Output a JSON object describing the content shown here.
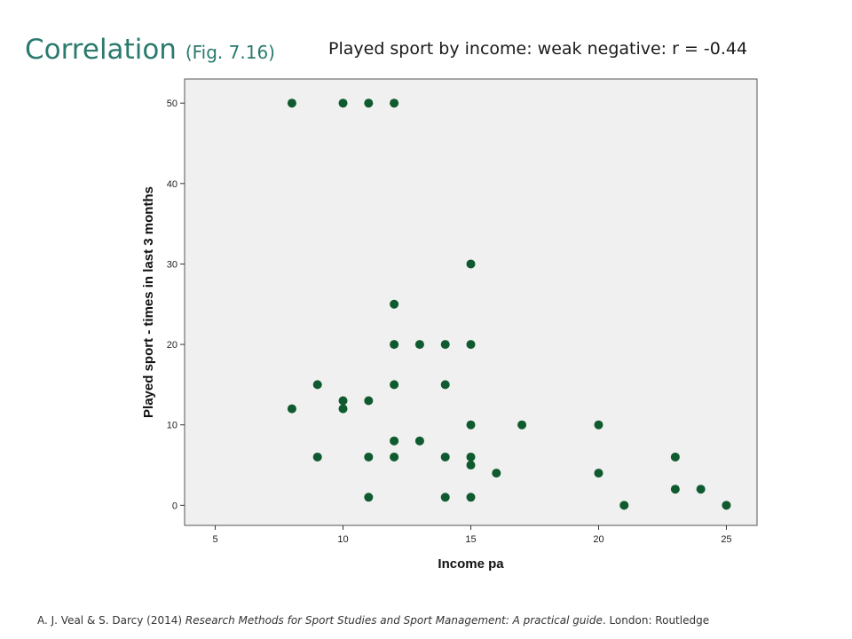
{
  "slide": {
    "title": "Correlation",
    "figure_ref": "(Fig. 7.16)",
    "heading": "Played sport by income: weak negative: r = -0.44",
    "citation": {
      "authors": "A. J. Veal & S. Darcy (2014) ",
      "book": "Research Methods for Sport Studies and Sport Management: A practical guide",
      "publisher": ". London: Routledge"
    }
  },
  "colors": {
    "title": "#2a7a6e",
    "point": "#0f5a2e",
    "plot_background": "#f0f0f0",
    "plot_border": "#555555"
  },
  "chart_data": {
    "type": "scatter",
    "title": "",
    "xlabel": "Income pa",
    "ylabel": "Played sport - times in last 3 months",
    "xlim": [
      3.8,
      26.2
    ],
    "ylim": [
      -2.5,
      53
    ],
    "xticks": [
      5,
      10,
      15,
      20,
      25
    ],
    "yticks": [
      0,
      10,
      20,
      30,
      40,
      50
    ],
    "grid": false,
    "points": [
      {
        "x": 8,
        "y": 50
      },
      {
        "x": 10,
        "y": 50
      },
      {
        "x": 11,
        "y": 50
      },
      {
        "x": 12,
        "y": 50
      },
      {
        "x": 15,
        "y": 30
      },
      {
        "x": 12,
        "y": 25
      },
      {
        "x": 12,
        "y": 20
      },
      {
        "x": 13,
        "y": 20
      },
      {
        "x": 14,
        "y": 20
      },
      {
        "x": 15,
        "y": 20
      },
      {
        "x": 9,
        "y": 15
      },
      {
        "x": 12,
        "y": 15
      },
      {
        "x": 14,
        "y": 15
      },
      {
        "x": 10,
        "y": 13
      },
      {
        "x": 11,
        "y": 13
      },
      {
        "x": 8,
        "y": 12
      },
      {
        "x": 10,
        "y": 12
      },
      {
        "x": 15,
        "y": 10
      },
      {
        "x": 17,
        "y": 10
      },
      {
        "x": 20,
        "y": 10
      },
      {
        "x": 12,
        "y": 8
      },
      {
        "x": 13,
        "y": 8
      },
      {
        "x": 9,
        "y": 6
      },
      {
        "x": 11,
        "y": 6
      },
      {
        "x": 12,
        "y": 6
      },
      {
        "x": 14,
        "y": 6
      },
      {
        "x": 15,
        "y": 6
      },
      {
        "x": 23,
        "y": 6
      },
      {
        "x": 15,
        "y": 5
      },
      {
        "x": 16,
        "y": 4
      },
      {
        "x": 20,
        "y": 4
      },
      {
        "x": 23,
        "y": 2
      },
      {
        "x": 24,
        "y": 2
      },
      {
        "x": 11,
        "y": 1
      },
      {
        "x": 14,
        "y": 1
      },
      {
        "x": 15,
        "y": 1
      },
      {
        "x": 21,
        "y": 0
      },
      {
        "x": 25,
        "y": 0
      }
    ]
  }
}
